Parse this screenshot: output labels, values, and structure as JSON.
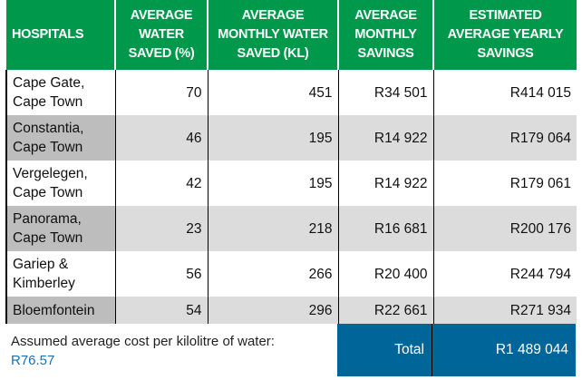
{
  "headers": [
    "HOSPITALS",
    "AVERAGE WATER SAVED (%)",
    "AVERAGE MONTHLY WATER SAVED (KL)",
    "AVERAGE MONTHLY SAVINGS",
    "ESTIMATED AVERAGE YEARLY SAVINGS"
  ],
  "rows": [
    {
      "hospital": "Cape Gate, Cape Town",
      "pct": "70",
      "kl": "451",
      "monthly": "R34 501",
      "yearly": "R414 015"
    },
    {
      "hospital": "Constantia, Cape Town",
      "pct": "46",
      "kl": "195",
      "monthly": "R14 922",
      "yearly": "R179 064"
    },
    {
      "hospital": "Vergelegen, Cape Town",
      "pct": "42",
      "kl": "195",
      "monthly": "R14 922",
      "yearly": "R179 061"
    },
    {
      "hospital": "Panorama, Cape Town",
      "pct": "23",
      "kl": "218",
      "monthly": "R16 681",
      "yearly": "R200 176"
    },
    {
      "hospital": "Gariep & Kimberley",
      "pct": "56",
      "kl": "266",
      "monthly": "R20 400",
      "yearly": "R244 794"
    },
    {
      "hospital": "Bloemfontein",
      "pct": "54",
      "kl": "296",
      "monthly": "R22 661",
      "yearly": "R271 934"
    }
  ],
  "footer": {
    "note": "Assumed average cost per kilolitre of water:",
    "cost": "R76.57",
    "total_label": "Total",
    "total_value": "R1 489 044"
  },
  "colors": {
    "header": "#00994c",
    "total": "#006699",
    "alt_row": "#dcdcdc"
  }
}
